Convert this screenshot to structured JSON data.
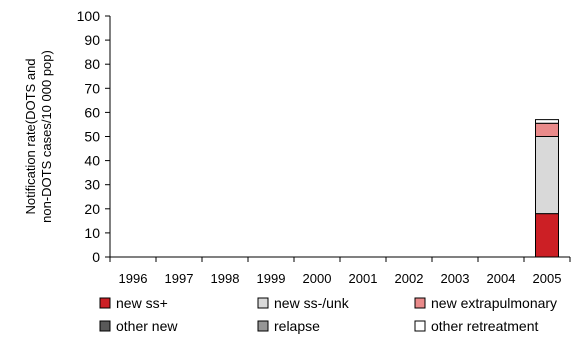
{
  "chart_data": {
    "type": "bar",
    "stacked": true,
    "title": "",
    "xlabel": "",
    "ylabel_lines": [
      "Notification rate(DOTS and",
      "non-DOTS cases/10 000 pop)"
    ],
    "ylim": [
      0,
      100
    ],
    "yticks": [
      0,
      10,
      20,
      30,
      40,
      50,
      60,
      70,
      80,
      90,
      100
    ],
    "grid": false,
    "legend_position": "bottom",
    "categories": [
      "1996",
      "1997",
      "1998",
      "1999",
      "2000",
      "2001",
      "2002",
      "2003",
      "2004",
      "2005"
    ],
    "series": [
      {
        "name": "new ss+",
        "color": "#cc1f25",
        "values": [
          0,
          0,
          0,
          0,
          0,
          0,
          0,
          0,
          0,
          18
        ]
      },
      {
        "name": "new ss-/unk",
        "color": "#d9d9d9",
        "values": [
          0,
          0,
          0,
          0,
          0,
          0,
          0,
          0,
          0,
          32
        ]
      },
      {
        "name": "new extrapulmonary",
        "color": "#e98a8a",
        "values": [
          0,
          0,
          0,
          0,
          0,
          0,
          0,
          0,
          0,
          5.5
        ]
      },
      {
        "name": "other new",
        "color": "#595959",
        "values": [
          0,
          0,
          0,
          0,
          0,
          0,
          0,
          0,
          0,
          0
        ]
      },
      {
        "name": "relapse",
        "color": "#969696",
        "values": [
          0,
          0,
          0,
          0,
          0,
          0,
          0,
          0,
          0,
          0
        ]
      },
      {
        "name": "other retreatment",
        "color": "#ffffff",
        "values": [
          0,
          0,
          0,
          0,
          0,
          0,
          0,
          0,
          0,
          1.5
        ]
      }
    ]
  }
}
